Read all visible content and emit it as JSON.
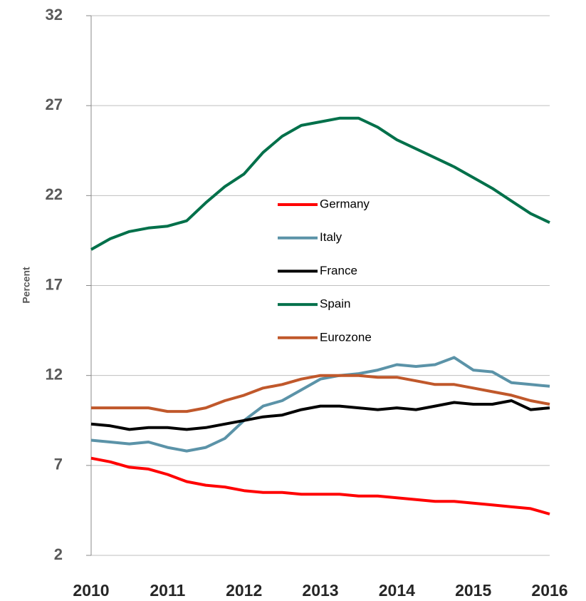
{
  "chart_data": {
    "type": "line",
    "y_label": "Percent",
    "x": [
      2010,
      2010.25,
      2010.5,
      2010.75,
      2011,
      2011.25,
      2011.5,
      2011.75,
      2012,
      2012.25,
      2012.5,
      2012.75,
      2013,
      2013.25,
      2013.5,
      2013.75,
      2014,
      2014.25,
      2014.5,
      2014.75,
      2015,
      2015.25,
      2015.5,
      2015.75,
      2016
    ],
    "series": [
      {
        "name": "Germany",
        "color": "#ff0000",
        "values": [
          7.4,
          7.2,
          6.9,
          6.8,
          6.5,
          6.1,
          5.9,
          5.8,
          5.6,
          5.5,
          5.5,
          5.4,
          5.4,
          5.4,
          5.3,
          5.3,
          5.2,
          5.1,
          5.0,
          5.0,
          4.9,
          4.8,
          4.7,
          4.6,
          4.3
        ]
      },
      {
        "name": "Italy",
        "color": "#5b93a8",
        "values": [
          8.4,
          8.3,
          8.2,
          8.3,
          8.0,
          7.8,
          8.0,
          8.5,
          9.5,
          10.3,
          10.6,
          11.2,
          11.8,
          12.0,
          12.1,
          12.3,
          12.6,
          12.5,
          12.6,
          13.0,
          12.3,
          12.2,
          11.6,
          11.5,
          11.4
        ]
      },
      {
        "name": "France",
        "color": "#000000",
        "values": [
          9.3,
          9.2,
          9.0,
          9.1,
          9.1,
          9.0,
          9.1,
          9.3,
          9.5,
          9.7,
          9.8,
          10.1,
          10.3,
          10.3,
          10.2,
          10.1,
          10.2,
          10.1,
          10.3,
          10.5,
          10.4,
          10.4,
          10.6,
          10.1,
          10.2
        ]
      },
      {
        "name": "Spain",
        "color": "#00704a",
        "values": [
          19.0,
          19.6,
          20.0,
          20.2,
          20.3,
          20.6,
          21.6,
          22.5,
          23.2,
          24.4,
          25.3,
          25.9,
          26.1,
          26.3,
          26.3,
          25.8,
          25.1,
          24.6,
          24.1,
          23.6,
          23.0,
          22.4,
          21.7,
          21.0,
          20.5
        ]
      },
      {
        "name": "Eurozone",
        "color": "#c0582b",
        "values": [
          10.2,
          10.2,
          10.2,
          10.2,
          10.0,
          10.0,
          10.2,
          10.6,
          10.9,
          11.3,
          11.5,
          11.8,
          12.0,
          12.0,
          12.0,
          11.9,
          11.9,
          11.7,
          11.5,
          11.5,
          11.3,
          11.1,
          10.9,
          10.6,
          10.4
        ]
      }
    ],
    "xlim": [
      2010,
      2016
    ],
    "xticks": [
      2010,
      2011,
      2012,
      2013,
      2014,
      2015,
      2016
    ],
    "ylim": [
      2,
      32
    ],
    "yticks": [
      2,
      7,
      12,
      17,
      22,
      27,
      32
    ],
    "grid": true
  }
}
